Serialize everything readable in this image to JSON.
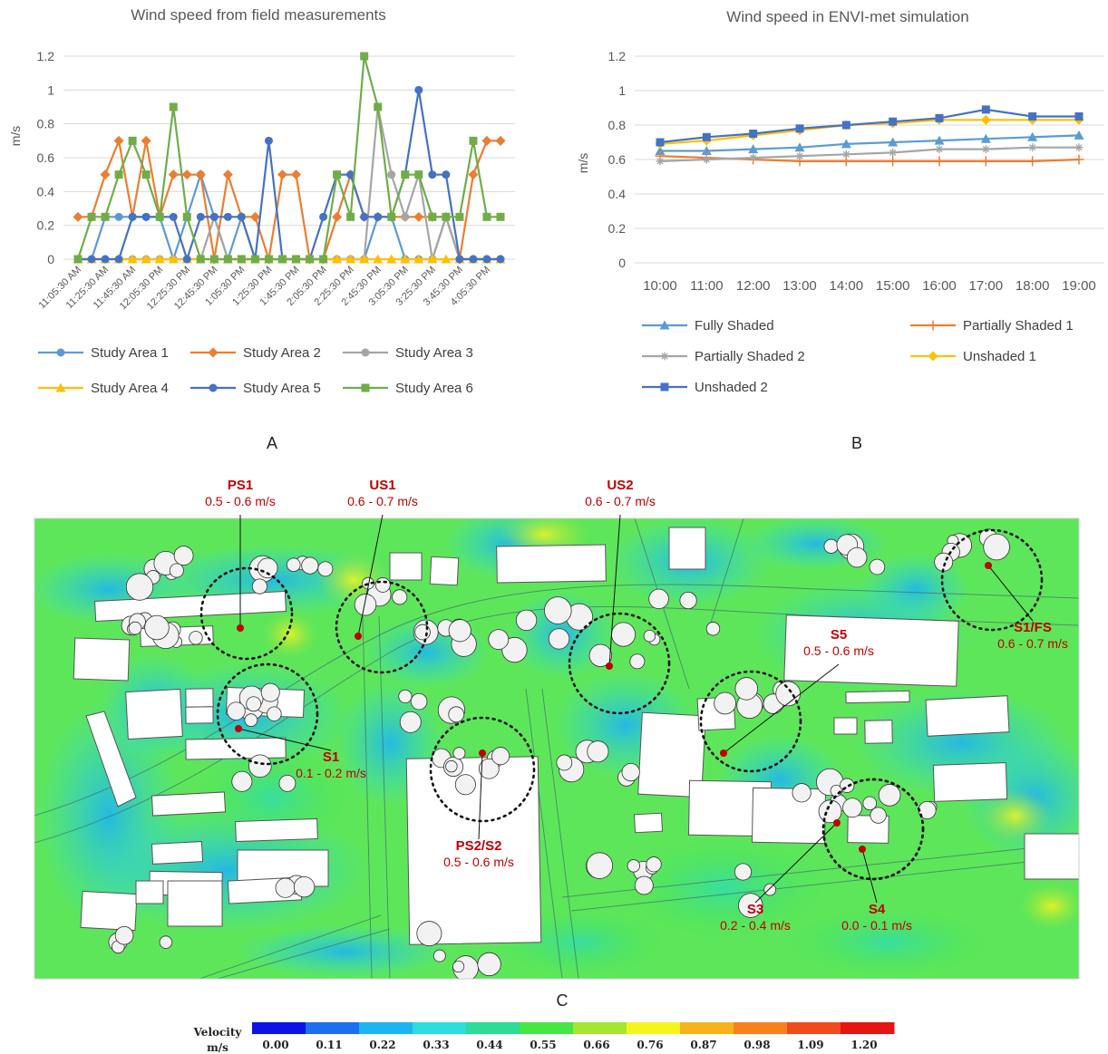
{
  "chart_data": [
    {
      "type": "line",
      "title": "Wind speed from field measurements",
      "ylabel": "m/s",
      "ylim": [
        0,
        1.2
      ],
      "yticks": [
        "0",
        "0.2",
        "0.4",
        "0.6",
        "0.8",
        "1",
        "1.2"
      ],
      "x": [
        "11:05:30 AM",
        "11:15:30 AM",
        "11:25:30 AM",
        "11:35:30 AM",
        "11:45:30 AM",
        "11:55:30 AM",
        "12:05:30 PM",
        "12:15:30 PM",
        "12:25:30 PM",
        "12:35:30 PM",
        "12:45:30 PM",
        "12:55:30 PM",
        "1:05:30 PM",
        "1:15:30 PM",
        "1:25:30 PM",
        "1:35:30 PM",
        "1:45:30 PM",
        "1:55:30 PM",
        "2:05:30 PM",
        "2:15:30 PM",
        "2:25:30 PM",
        "2:35:30 PM",
        "2:45:30 PM",
        "2:55:30 PM",
        "3:05:30 PM",
        "3:15:30 PM",
        "3:25:30 PM",
        "3:35:30 PM",
        "3:45:30 PM",
        "3:55:30 PM",
        "4:05:30 PM",
        "4:15:30 PM"
      ],
      "xtick_labels": [
        "11:05:30 AM",
        "11:25:30 AM",
        "11:45:30 AM",
        "12:05:30 PM",
        "12:25:30 PM",
        "12:45:30 PM",
        "1:05:30 PM",
        "1:25:30 PM",
        "1:45:30 PM",
        "2:05:30 PM",
        "2:25:30 PM",
        "2:45:30 PM",
        "3:05:30 PM",
        "3:25:30 PM",
        "3:45:30 PM",
        "4:05:30 PM"
      ],
      "legend_position": "bottom",
      "series": [
        {
          "name": "Study Area 1",
          "color": "#5b9bd5",
          "marker": "circle",
          "values": [
            0,
            0,
            0.25,
            0.25,
            0.25,
            0.25,
            0.25,
            0,
            0.25,
            0.5,
            0.25,
            0,
            0.25,
            0,
            0,
            0,
            0,
            0,
            0,
            0,
            0,
            0,
            0.25,
            0.25,
            0,
            0,
            0,
            0.25,
            0,
            0,
            0,
            0
          ]
        },
        {
          "name": "Study Area 2",
          "color": "#ed7d31",
          "marker": "diamond",
          "values": [
            0.25,
            0.25,
            0.5,
            0.7,
            0.25,
            0.7,
            0.25,
            0.5,
            0.5,
            0.5,
            0,
            0.5,
            0.25,
            0.25,
            0,
            0.5,
            0.5,
            0,
            0,
            0.25,
            0.5,
            0.25,
            0.25,
            0.25,
            0.25,
            0.25,
            0.25,
            0.25,
            0,
            0.5,
            0.7,
            0.7
          ]
        },
        {
          "name": "Study Area 3",
          "color": "#a5a5a5",
          "marker": "circle",
          "values": [
            0,
            0,
            0,
            0,
            0,
            0,
            0,
            0,
            0,
            0,
            0.25,
            0,
            0,
            0,
            0,
            0,
            0,
            0,
            0,
            0,
            0,
            0,
            0.9,
            0.5,
            0.25,
            0.5,
            0,
            0.25,
            0,
            0,
            0,
            0
          ]
        },
        {
          "name": "Study Area 4",
          "color": "#ffc000",
          "marker": "triangle",
          "values": [
            0,
            0,
            0,
            0,
            0,
            0,
            0,
            0,
            0,
            0,
            0,
            0,
            0,
            0,
            0,
            0,
            0,
            0,
            0,
            0,
            0,
            0,
            0,
            0,
            0,
            0,
            0,
            0,
            0,
            0,
            0,
            0
          ]
        },
        {
          "name": "Study Area 5",
          "color": "#4472c4",
          "marker": "circle",
          "values": [
            0,
            0,
            0,
            0,
            0.25,
            0.25,
            0.25,
            0.25,
            0,
            0.25,
            0.25,
            0.25,
            0.25,
            0,
            0.7,
            0,
            0,
            0,
            0.25,
            0.5,
            0.5,
            0.25,
            0.25,
            0.25,
            0.5,
            1.0,
            0.5,
            0.5,
            0,
            0,
            0,
            0
          ]
        },
        {
          "name": "Study Area 6",
          "color": "#70ad47",
          "marker": "square",
          "values": [
            0,
            0.25,
            0.25,
            0.5,
            0.7,
            0.5,
            0.25,
            0.9,
            0.25,
            0,
            0,
            0,
            0,
            0,
            0,
            0,
            0,
            0,
            0,
            0.5,
            0.25,
            1.2,
            0.9,
            0.25,
            0.5,
            0.5,
            0.25,
            0.25,
            0.25,
            0.7,
            0.25,
            0.25
          ]
        }
      ],
      "panel_label": "A"
    },
    {
      "type": "line",
      "title": "Wind speed in ENVI-met simulation",
      "ylabel": "m/s",
      "ylim": [
        0,
        1.2
      ],
      "yticks": [
        "0",
        "0.2",
        "0.4",
        "0.6",
        "0.8",
        "1",
        "1.2"
      ],
      "x": [
        "10:00",
        "11:00",
        "12:00",
        "13:00",
        "14:00",
        "15:00",
        "16:00",
        "17:00",
        "18:00",
        "19:00"
      ],
      "legend_position": "bottom",
      "series": [
        {
          "name": "Fully Shaded",
          "color": "#5b9bd5",
          "marker": "triangle",
          "values": [
            0.65,
            0.65,
            0.66,
            0.67,
            0.69,
            0.7,
            0.71,
            0.72,
            0.73,
            0.74
          ]
        },
        {
          "name": "Partially Shaded 1",
          "color": "#ed7d31",
          "marker": "plus",
          "values": [
            0.62,
            0.61,
            0.6,
            0.59,
            0.59,
            0.59,
            0.59,
            0.59,
            0.59,
            0.6
          ]
        },
        {
          "name": "Partially Shaded 2",
          "color": "#a5a5a5",
          "marker": "star",
          "values": [
            0.59,
            0.6,
            0.61,
            0.62,
            0.63,
            0.64,
            0.66,
            0.66,
            0.67,
            0.67
          ]
        },
        {
          "name": "Unshaded 1",
          "color": "#ffc000",
          "marker": "diamond",
          "values": [
            0.69,
            0.71,
            0.74,
            0.77,
            0.8,
            0.81,
            0.83,
            0.83,
            0.83,
            0.83
          ]
        },
        {
          "name": "Unshaded 2",
          "color": "#4472c4",
          "marker": "square",
          "values": [
            0.7,
            0.73,
            0.75,
            0.78,
            0.8,
            0.82,
            0.84,
            0.89,
            0.85,
            0.85
          ]
        }
      ],
      "panel_label": "B"
    }
  ],
  "map": {
    "panel_label": "C",
    "sites": [
      {
        "name": "PS1",
        "value": "0.5 - 0.6 m/s"
      },
      {
        "name": "US1",
        "value": "0.6 - 0.7 m/s"
      },
      {
        "name": "US2",
        "value": "0.6 - 0.7 m/s"
      },
      {
        "name": "S1/FS",
        "value": "0.6 - 0.7 m/s"
      },
      {
        "name": "S5",
        "value": "0.5 - 0.6 m/s"
      },
      {
        "name": "S1",
        "value": "0.1 - 0.2 m/s"
      },
      {
        "name": "PS2/S2",
        "value": "0.5 - 0.6 m/s"
      },
      {
        "name": "S3",
        "value": "0.2 - 0.4 m/s"
      },
      {
        "name": "S4",
        "value": "0.0 - 0.1 m/s"
      }
    ],
    "colorbar": {
      "title": "Velocity",
      "unit": "m/s",
      "ticks": [
        "0.00",
        "0.11",
        "0.22",
        "0.33",
        "0.44",
        "0.55",
        "0.66",
        "0.76",
        "0.87",
        "0.98",
        "1.09",
        "1.20"
      ],
      "colors": [
        "#0a14e6",
        "#1e6ef0",
        "#1eb4f0",
        "#2ddcdc",
        "#2ddc96",
        "#46e646",
        "#a5e632",
        "#f5f51e",
        "#f5b41e",
        "#f5821e",
        "#f04b1e",
        "#e61414"
      ]
    }
  }
}
